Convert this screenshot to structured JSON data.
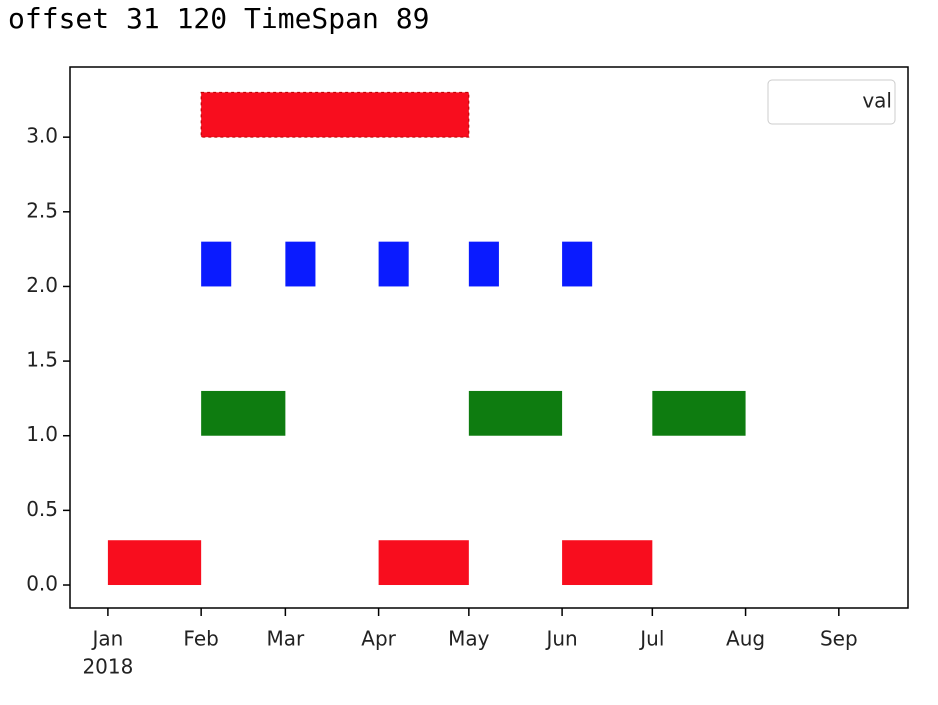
{
  "header": {
    "text": "offset 31 120 TimeSpan 89"
  },
  "chart_data": {
    "type": "broken_barh",
    "xlim": [
      -12.6,
      266
    ],
    "ylim": [
      -0.154,
      3.47
    ],
    "xticks": [
      {
        "value": 0,
        "label": "Jan"
      },
      {
        "value": 31,
        "label": "Feb"
      },
      {
        "value": 59,
        "label": "Mar"
      },
      {
        "value": 90,
        "label": "Apr"
      },
      {
        "value": 120,
        "label": "May"
      },
      {
        "value": 151,
        "label": "Jun"
      },
      {
        "value": 181,
        "label": "Jul"
      },
      {
        "value": 212,
        "label": "Aug"
      },
      {
        "value": 243,
        "label": "Sep"
      }
    ],
    "x_year_label": "2018",
    "yticks": [
      {
        "value": 0,
        "label": "0.0"
      },
      {
        "value": 0.5,
        "label": "0.5"
      },
      {
        "value": 1,
        "label": "1.0"
      },
      {
        "value": 1.5,
        "label": "1.5"
      },
      {
        "value": 2,
        "label": "2.0"
      },
      {
        "value": 2.5,
        "label": "2.5"
      },
      {
        "value": 3,
        "label": "3.0"
      }
    ],
    "legend": {
      "labels": [
        "val"
      ],
      "loc": "upper right"
    },
    "series": [
      {
        "color": "#f80d1e",
        "y": 0,
        "height": 0.3,
        "starts": [
          0,
          90,
          151
        ],
        "widths": [
          31,
          30,
          30
        ],
        "dashed": false
      },
      {
        "color": "#0e7c10",
        "y": 1,
        "height": 0.3,
        "starts": [
          31,
          120,
          181
        ],
        "widths": [
          28,
          31,
          31
        ],
        "dashed": false
      },
      {
        "color": "#0a1bff",
        "y": 2,
        "height": 0.3,
        "starts": [
          31,
          59,
          90,
          120,
          151
        ],
        "widths": [
          10,
          10,
          10,
          10,
          10
        ],
        "dashed": false
      },
      {
        "color": "#f80d1e",
        "y": 3,
        "height": 0.3,
        "starts": [
          31
        ],
        "widths": [
          89
        ],
        "dashed": true
      }
    ]
  }
}
